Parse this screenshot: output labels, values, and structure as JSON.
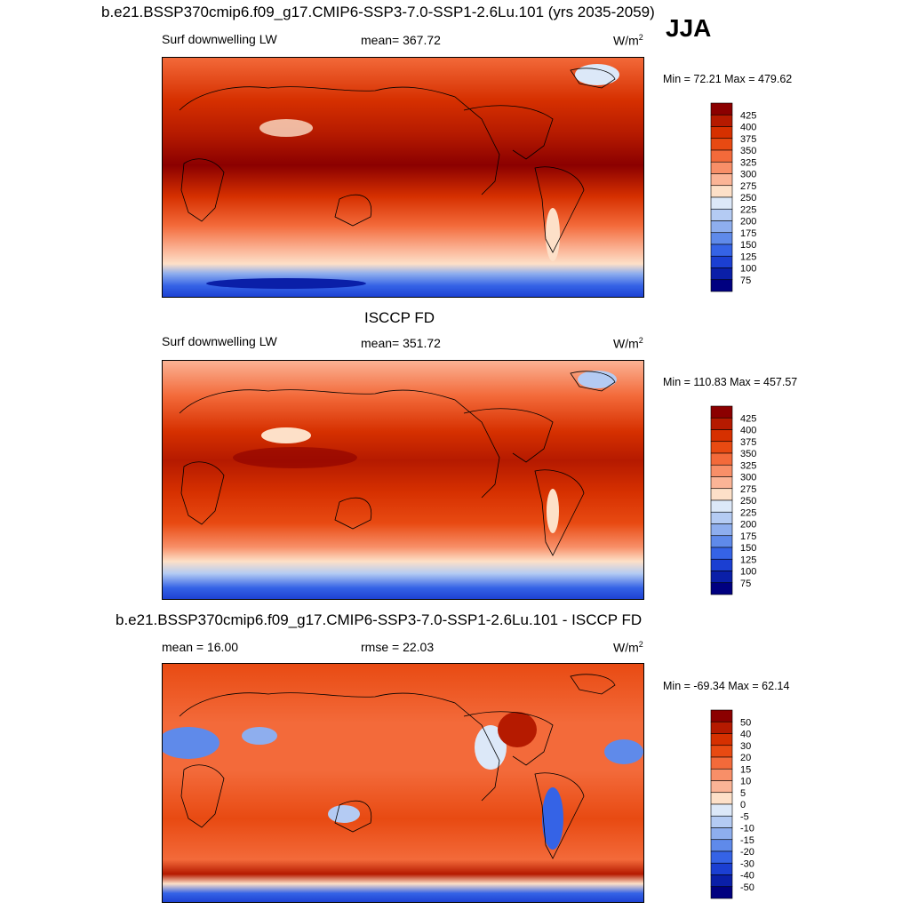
{
  "header": {
    "title": "b.e21.BSSP370cmip6.f09_g17.CMIP6-SSP3-7.0-SSP1-2.6Lu.101 (yrs 2035-2059)",
    "season": "JJA"
  },
  "panels": [
    {
      "id": "model",
      "title": "",
      "left_label": "Surf downwelling LW",
      "center_label": "mean= 367.72",
      "units": "W/m",
      "units_sup": "2",
      "minmax": "Min =  72.21 Max = 479.62",
      "colorbar_labels": [
        "425",
        "400",
        "375",
        "350",
        "325",
        "300",
        "275",
        "250",
        "225",
        "200",
        "175",
        "150",
        "125",
        "100",
        "75"
      ]
    },
    {
      "id": "obs",
      "title": "ISCCP FD",
      "left_label": "Surf downwelling LW",
      "center_label": "mean= 351.72",
      "units": "W/m",
      "units_sup": "2",
      "minmax": "Min = 110.83 Max = 457.57",
      "colorbar_labels": [
        "425",
        "400",
        "375",
        "350",
        "325",
        "300",
        "275",
        "250",
        "225",
        "200",
        "175",
        "150",
        "125",
        "100",
        "75"
      ]
    },
    {
      "id": "diff",
      "title": "b.e21.BSSP370cmip6.f09_g17.CMIP6-SSP3-7.0-SSP1-2.6Lu.101 - ISCCP FD",
      "left_label": "mean =  16.00",
      "center_label": "rmse =  22.03",
      "units": "W/m",
      "units_sup": "2",
      "minmax": "Min = -69.34 Max =  62.14",
      "colorbar_labels": [
        "50",
        "40",
        "30",
        "20",
        "15",
        "10",
        "5",
        "0",
        "-5",
        "-10",
        "-15",
        "-20",
        "-30",
        "-40",
        "-50"
      ]
    }
  ],
  "colors": {
    "abs_scale": [
      "#8b0000",
      "#b51a00",
      "#d63000",
      "#e84a12",
      "#f36a3a",
      "#f88f68",
      "#fbb496",
      "#fde0c8",
      "#dce8f8",
      "#b4cbf3",
      "#8eaeee",
      "#5f8aea",
      "#3563e6",
      "#1b3fd2",
      "#0a1fa8",
      "#000080"
    ],
    "diff_scale": [
      "#8b0000",
      "#b51a00",
      "#d63000",
      "#e84a12",
      "#f36a3a",
      "#f88f68",
      "#fbb496",
      "#fde0c8",
      "#dce8f8",
      "#b4cbf3",
      "#8eaeee",
      "#5f8aea",
      "#3563e6",
      "#1b3fd2",
      "#0a1fa8",
      "#000080"
    ]
  }
}
